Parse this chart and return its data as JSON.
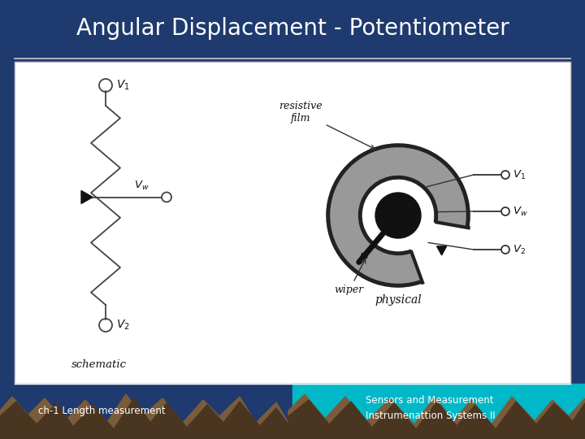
{
  "title": "Angular Displacement - Potentiometer",
  "title_color": "#ffffff",
  "title_fontsize": 20,
  "slide_bg": "#1e3a6e",
  "footer_left": "ch-1 Length measurement",
  "footer_right": "Sensors and Measurement\nInstrumenattion Systems II",
  "footer_color": "#ffffff",
  "mountain_brown": "#7a5c3a",
  "mountain_dark": "#4a3520",
  "teal_bg": "#00b8c8",
  "separator_color": "#cccccc",
  "content_bg": "#ffffff",
  "schematic_color": "#444444",
  "zigzag_amplitude": 18,
  "n_zags": 8
}
